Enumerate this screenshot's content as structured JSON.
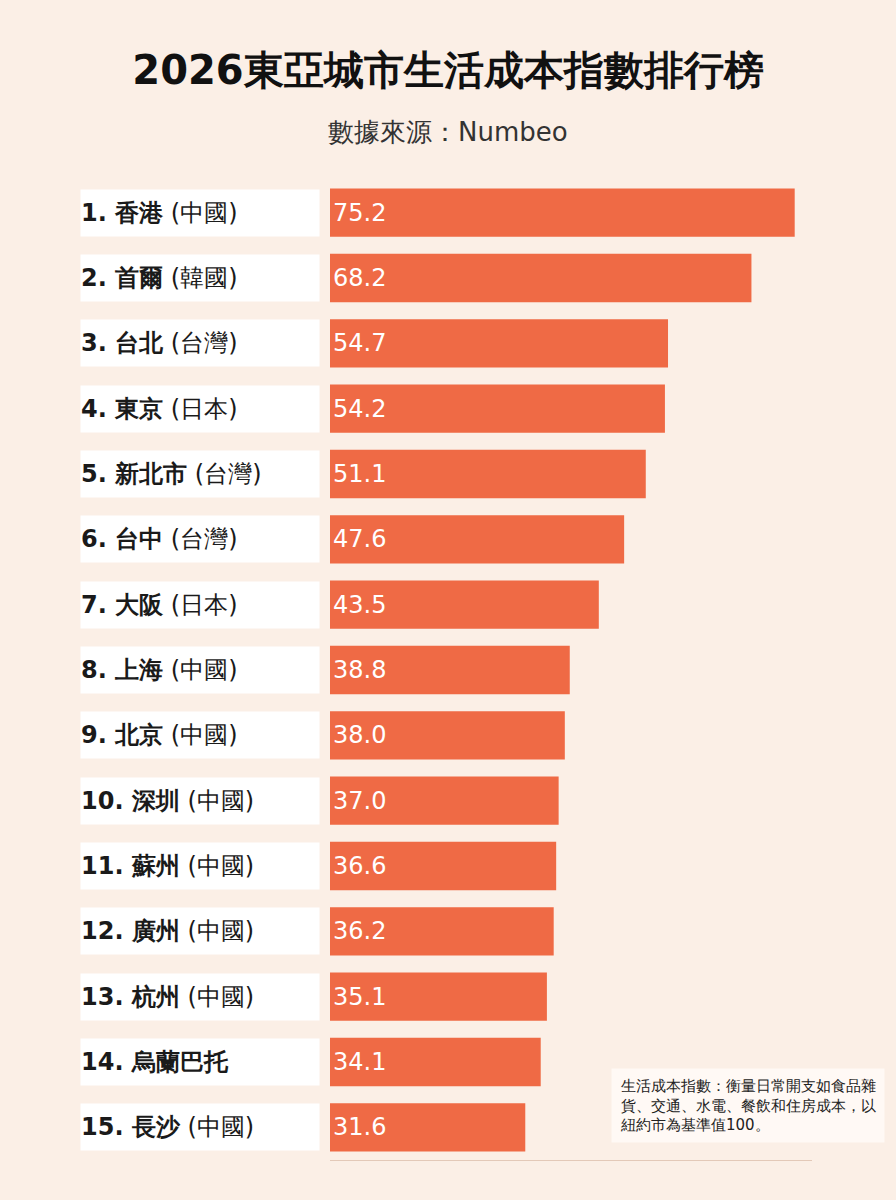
{
  "chart_data": {
    "type": "bar",
    "title": "2026東亞城市生活成本指數排行榜",
    "subtitle": "數據來源：Numbeo",
    "orientation": "horizontal",
    "categories": [
      "1. 香港 (中國)",
      "2. 首爾 (韓國)",
      "3. 台北 (台灣)",
      "4. 東京 (日本)",
      "5. 新北市 (台灣)",
      "6. 台中 (台灣)",
      "7. 大阪 (日本)",
      "8. 上海 (中國)",
      "9. 北京 (中國)",
      "10. 深圳 (中國)",
      "11. 蘇州 (中國)",
      "12. 廣州 (中國)",
      "13. 杭州 (中國)",
      "14. 烏蘭巴托",
      "15. 長沙 (中國)"
    ],
    "values": [
      75.2,
      68.2,
      54.7,
      54.2,
      51.1,
      47.6,
      43.5,
      38.8,
      38.0,
      37.0,
      36.6,
      36.2,
      35.1,
      34.1,
      31.6
    ],
    "value_labels": [
      "75.2",
      "68.2",
      "54.7",
      "54.2",
      "51.1",
      "47.6",
      "43.5",
      "38.8",
      "38.0",
      "37.0",
      "36.6",
      "36.2",
      "35.1",
      "34.1",
      "31.6"
    ],
    "color": "#ef6a45",
    "data_labels": true,
    "tick_labels": false,
    "xlim": [
      0,
      78
    ],
    "xticks": [],
    "annotations": [
      "生活成本指數：衡量日常開支如食品雜貨、交通、水電、餐飲和住房成本，以紐約市為基準值100。"
    ]
  }
}
